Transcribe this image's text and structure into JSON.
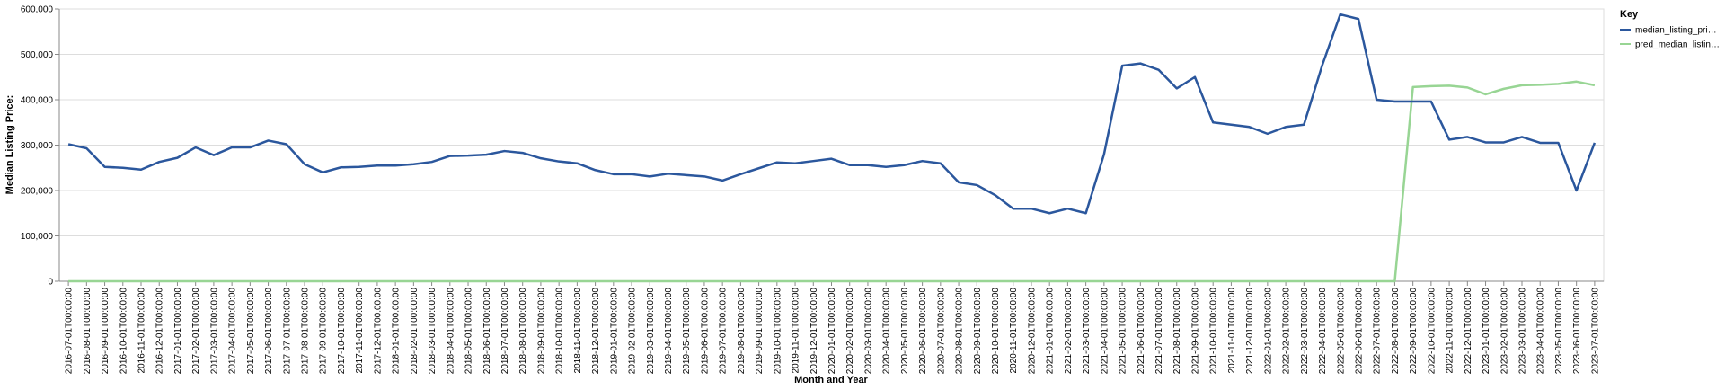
{
  "chart_data": {
    "type": "line",
    "x_label": "Month and Year",
    "y_label": "Median Listing Price:",
    "legend_title": "Key",
    "legend": "right",
    "grid": true,
    "categories": [
      "2016-07-01T00:00:00",
      "2016-08-01T00:00:00",
      "2016-09-01T00:00:00",
      "2016-10-01T00:00:00",
      "2016-11-01T00:00:00",
      "2016-12-01T00:00:00",
      "2017-01-01T00:00:00",
      "2017-02-01T00:00:00",
      "2017-03-01T00:00:00",
      "2017-04-01T00:00:00",
      "2017-05-01T00:00:00",
      "2017-06-01T00:00:00",
      "2017-07-01T00:00:00",
      "2017-08-01T00:00:00",
      "2017-09-01T00:00:00",
      "2017-10-01T00:00:00",
      "2017-11-01T00:00:00",
      "2017-12-01T00:00:00",
      "2018-01-01T00:00:00",
      "2018-02-01T00:00:00",
      "2018-03-01T00:00:00",
      "2018-04-01T00:00:00",
      "2018-05-01T00:00:00",
      "2018-06-01T00:00:00",
      "2018-07-01T00:00:00",
      "2018-08-01T00:00:00",
      "2018-09-01T00:00:00",
      "2018-10-01T00:00:00",
      "2018-11-01T00:00:00",
      "2018-12-01T00:00:00",
      "2019-01-01T00:00:00",
      "2019-02-01T00:00:00",
      "2019-03-01T00:00:00",
      "2019-04-01T00:00:00",
      "2019-05-01T00:00:00",
      "2019-06-01T00:00:00",
      "2019-07-01T00:00:00",
      "2019-08-01T00:00:00",
      "2019-09-01T00:00:00",
      "2019-10-01T00:00:00",
      "2019-11-01T00:00:00",
      "2019-12-01T00:00:00",
      "2020-01-01T00:00:00",
      "2020-02-01T00:00:00",
      "2020-03-01T00:00:00",
      "2020-04-01T00:00:00",
      "2020-05-01T00:00:00",
      "2020-06-01T00:00:00",
      "2020-07-01T00:00:00",
      "2020-08-01T00:00:00",
      "2020-09-01T00:00:00",
      "2020-10-01T00:00:00",
      "2020-11-01T00:00:00",
      "2020-12-01T00:00:00",
      "2021-01-01T00:00:00",
      "2021-02-01T00:00:00",
      "2021-03-01T00:00:00",
      "2021-04-01T00:00:00",
      "2021-05-01T00:00:00",
      "2021-06-01T00:00:00",
      "2021-07-01T00:00:00",
      "2021-08-01T00:00:00",
      "2021-09-01T00:00:00",
      "2021-10-01T00:00:00",
      "2021-11-01T00:00:00",
      "2021-12-01T00:00:00",
      "2022-01-01T00:00:00",
      "2022-02-01T00:00:00",
      "2022-03-01T00:00:00",
      "2022-04-01T00:00:00",
      "2022-05-01T00:00:00",
      "2022-06-01T00:00:00",
      "2022-07-01T00:00:00",
      "2022-08-01T00:00:00",
      "2022-09-01T00:00:00",
      "2022-10-01T00:00:00",
      "2022-11-01T00:00:00",
      "2022-12-01T00:00:00",
      "2023-01-01T00:00:00",
      "2023-02-01T00:00:00",
      "2023-03-01T00:00:00",
      "2023-04-01T00:00:00",
      "2023-05-01T00:00:00",
      "2023-06-01T00:00:00",
      "2023-07-01T00:00:00"
    ],
    "series": [
      {
        "name": "median_listing_pri…",
        "color": "#2b579d",
        "values": [
          302000,
          293000,
          252000,
          250000,
          246000,
          263000,
          272000,
          295000,
          278000,
          295000,
          295000,
          310000,
          302000,
          258000,
          240000,
          251000,
          252000,
          255000,
          255000,
          258000,
          263000,
          276000,
          277000,
          279000,
          287000,
          283000,
          271000,
          264000,
          260000,
          245000,
          236000,
          236000,
          231000,
          237000,
          234000,
          231000,
          222000,
          236000,
          249000,
          262000,
          260000,
          265000,
          270000,
          256000,
          256000,
          252000,
          256000,
          265000,
          260000,
          218000,
          212000,
          190000,
          160000,
          160000,
          150000,
          160000,
          150000,
          280000,
          475000,
          480000,
          466000,
          425000,
          450000,
          350000,
          345000,
          340000,
          325000,
          340000,
          345000,
          475000,
          588000,
          578000,
          400000,
          396000,
          396000,
          396000,
          312000,
          318000,
          306000,
          306000,
          318000,
          305000,
          305000,
          200000,
          305000
        ]
      },
      {
        "name": "pred_median_listin…",
        "color": "#98d594",
        "values": [
          0,
          0,
          0,
          0,
          0,
          0,
          0,
          0,
          0,
          0,
          0,
          0,
          0,
          0,
          0,
          0,
          0,
          0,
          0,
          0,
          0,
          0,
          0,
          0,
          0,
          0,
          0,
          0,
          0,
          0,
          0,
          0,
          0,
          0,
          0,
          0,
          0,
          0,
          0,
          0,
          0,
          0,
          0,
          0,
          0,
          0,
          0,
          0,
          0,
          0,
          0,
          0,
          0,
          0,
          0,
          0,
          0,
          0,
          0,
          0,
          0,
          0,
          0,
          0,
          0,
          0,
          0,
          0,
          0,
          0,
          0,
          0,
          0,
          0,
          428000,
          430000,
          431000,
          427000,
          412000,
          424000,
          432000,
          433000,
          435000,
          440000,
          432000
        ]
      }
    ],
    "ylim": [
      0,
      600000
    ],
    "yticks": [
      0,
      {
        "value": 100000,
        "label": "100,000"
      },
      {
        "value": 200000,
        "label": "200,000"
      },
      {
        "value": 300000,
        "label": "300,000"
      },
      {
        "value": 400000,
        "label": "400,000"
      },
      {
        "value": 500000,
        "label": "500,000"
      },
      {
        "value": 600000,
        "label": "600,000"
      }
    ]
  }
}
